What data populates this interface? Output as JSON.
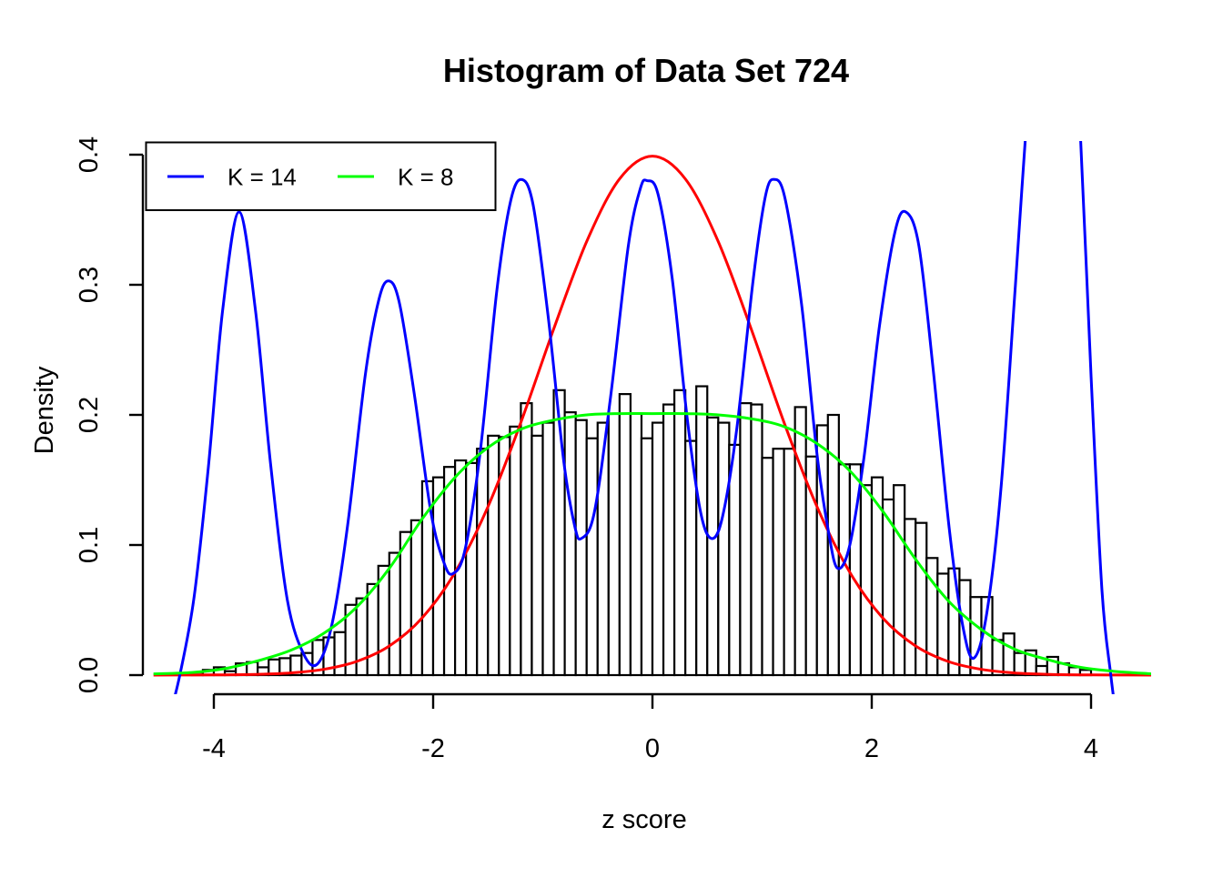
{
  "chart_data": {
    "type": "bar",
    "title": "Histogram of Data Set 724",
    "xlabel": "z score",
    "ylabel": "Density",
    "xlim": [
      -4.647,
      4.548
    ],
    "ylim": [
      -0.0147,
      0.4105
    ],
    "grid": "off",
    "x_ticks": [
      {
        "v": -4,
        "label": "-4"
      },
      {
        "v": -2,
        "label": "-2"
      },
      {
        "v": 0,
        "label": "0"
      },
      {
        "v": 2,
        "label": "2"
      },
      {
        "v": 4,
        "label": "4"
      }
    ],
    "y_ticks": [
      {
        "v": 0.0,
        "label": "0.0"
      },
      {
        "v": 0.1,
        "label": "0.1"
      },
      {
        "v": 0.2,
        "label": "0.2"
      },
      {
        "v": 0.3,
        "label": "0.3"
      },
      {
        "v": 0.4,
        "label": "0.4"
      }
    ],
    "histogram": {
      "bin_start": -4.2,
      "bin_width": 0.1,
      "bar_stroke": "#000000",
      "bar_fill": "#ffffff",
      "densities": [
        0.002,
        0.004,
        0.006,
        0.003,
        0.009,
        0.01,
        0.006,
        0.012,
        0.013,
        0.015,
        0.017,
        0.027,
        0.029,
        0.033,
        0.054,
        0.059,
        0.07,
        0.084,
        0.094,
        0.11,
        0.119,
        0.149,
        0.152,
        0.16,
        0.165,
        0.163,
        0.174,
        0.184,
        0.183,
        0.191,
        0.209,
        0.184,
        0.194,
        0.219,
        0.202,
        0.196,
        0.182,
        0.194,
        0.201,
        0.216,
        0.201,
        0.182,
        0.194,
        0.208,
        0.219,
        0.18,
        0.222,
        0.198,
        0.194,
        0.177,
        0.209,
        0.208,
        0.167,
        0.174,
        0.174,
        0.206,
        0.168,
        0.192,
        0.2,
        0.162,
        0.162,
        0.146,
        0.152,
        0.135,
        0.146,
        0.12,
        0.117,
        0.09,
        0.078,
        0.082,
        0.073,
        0.06,
        0.06,
        0.027,
        0.032,
        0.017,
        0.019,
        0.007,
        0.014,
        0.009,
        0.006,
        0.004
      ]
    },
    "series": [
      {
        "name": "normal-curve",
        "color": "#ff0000",
        "type": "line",
        "points": [
          [
            -4.55,
            0.0
          ],
          [
            -4.2,
            0.0001
          ],
          [
            -3.9,
            0.0002
          ],
          [
            -3.6,
            0.0006
          ],
          [
            -3.3,
            0.0017
          ],
          [
            -3.0,
            0.0044
          ],
          [
            -2.7,
            0.0104
          ],
          [
            -2.4,
            0.0224
          ],
          [
            -2.1,
            0.044
          ],
          [
            -1.8,
            0.079
          ],
          [
            -1.5,
            0.1295
          ],
          [
            -1.2,
            0.1942
          ],
          [
            -0.9,
            0.2661
          ],
          [
            -0.6,
            0.3332
          ],
          [
            -0.3,
            0.3814
          ],
          [
            0.0,
            0.3989
          ],
          [
            0.3,
            0.3814
          ],
          [
            0.6,
            0.3332
          ],
          [
            0.9,
            0.2661
          ],
          [
            1.2,
            0.1942
          ],
          [
            1.5,
            0.1295
          ],
          [
            1.8,
            0.079
          ],
          [
            2.1,
            0.044
          ],
          [
            2.4,
            0.0224
          ],
          [
            2.7,
            0.0104
          ],
          [
            3.0,
            0.0044
          ],
          [
            3.3,
            0.0017
          ],
          [
            3.6,
            0.0006
          ],
          [
            3.9,
            0.0002
          ],
          [
            4.2,
            0.0001
          ],
          [
            4.55,
            0.0
          ]
        ]
      },
      {
        "name": "K = 14",
        "color": "#0000ff",
        "type": "line",
        "points": [
          [
            -4.4,
            -0.03
          ],
          [
            -4.31,
            0.0
          ],
          [
            -4.18,
            0.06
          ],
          [
            -4.05,
            0.16
          ],
          [
            -3.92,
            0.28
          ],
          [
            -3.77,
            0.356
          ],
          [
            -3.62,
            0.28
          ],
          [
            -3.48,
            0.16
          ],
          [
            -3.33,
            0.058
          ],
          [
            -3.18,
            0.016
          ],
          [
            -3.05,
            0.009
          ],
          [
            -2.92,
            0.04
          ],
          [
            -2.78,
            0.115
          ],
          [
            -2.62,
            0.23
          ],
          [
            -2.5,
            0.287
          ],
          [
            -2.41,
            0.303
          ],
          [
            -2.31,
            0.287
          ],
          [
            -2.17,
            0.215
          ],
          [
            -2.02,
            0.125
          ],
          [
            -1.9,
            0.086
          ],
          [
            -1.82,
            0.078
          ],
          [
            -1.71,
            0.096
          ],
          [
            -1.57,
            0.172
          ],
          [
            -1.42,
            0.295
          ],
          [
            -1.3,
            0.362
          ],
          [
            -1.2,
            0.381
          ],
          [
            -1.09,
            0.362
          ],
          [
            -0.95,
            0.275
          ],
          [
            -0.81,
            0.165
          ],
          [
            -0.71,
            0.115
          ],
          [
            -0.65,
            0.105
          ],
          [
            -0.53,
            0.125
          ],
          [
            -0.38,
            0.215
          ],
          [
            -0.22,
            0.33
          ],
          [
            -0.11,
            0.374
          ],
          [
            -0.05,
            0.38
          ],
          [
            0.05,
            0.37
          ],
          [
            0.18,
            0.305
          ],
          [
            0.32,
            0.195
          ],
          [
            0.44,
            0.125
          ],
          [
            0.54,
            0.105
          ],
          [
            0.64,
            0.122
          ],
          [
            0.77,
            0.19
          ],
          [
            0.92,
            0.305
          ],
          [
            1.03,
            0.368
          ],
          [
            1.11,
            0.381
          ],
          [
            1.21,
            0.366
          ],
          [
            1.36,
            0.285
          ],
          [
            1.5,
            0.17
          ],
          [
            1.61,
            0.108
          ],
          [
            1.69,
            0.082
          ],
          [
            1.8,
            0.1
          ],
          [
            1.93,
            0.168
          ],
          [
            2.07,
            0.268
          ],
          [
            2.21,
            0.34
          ],
          [
            2.31,
            0.356
          ],
          [
            2.43,
            0.33
          ],
          [
            2.56,
            0.235
          ],
          [
            2.71,
            0.11
          ],
          [
            2.83,
            0.038
          ],
          [
            2.93,
            0.013
          ],
          [
            3.05,
            0.048
          ],
          [
            3.18,
            0.145
          ],
          [
            3.31,
            0.3
          ],
          [
            3.44,
            0.46
          ],
          [
            3.58,
            0.61
          ],
          [
            3.68,
            0.66
          ],
          [
            3.79,
            0.58
          ],
          [
            3.9,
            0.42
          ],
          [
            4.0,
            0.23
          ],
          [
            4.1,
            0.065
          ],
          [
            4.18,
            0.0
          ],
          [
            4.25,
            -0.045
          ]
        ]
      },
      {
        "name": "K = 8",
        "color": "#00ff00",
        "type": "line",
        "points": [
          [
            -4.55,
            0.001
          ],
          [
            -4.2,
            0.002
          ],
          [
            -3.9,
            0.005
          ],
          [
            -3.6,
            0.011
          ],
          [
            -3.3,
            0.019
          ],
          [
            -3.0,
            0.032
          ],
          [
            -2.7,
            0.052
          ],
          [
            -2.4,
            0.082
          ],
          [
            -2.1,
            0.12
          ],
          [
            -1.8,
            0.152
          ],
          [
            -1.5,
            0.175
          ],
          [
            -1.2,
            0.189
          ],
          [
            -0.9,
            0.196
          ],
          [
            -0.6,
            0.2
          ],
          [
            -0.3,
            0.201
          ],
          [
            0.0,
            0.201
          ],
          [
            0.3,
            0.201
          ],
          [
            0.6,
            0.2
          ],
          [
            0.9,
            0.197
          ],
          [
            1.2,
            0.191
          ],
          [
            1.5,
            0.178
          ],
          [
            1.8,
            0.157
          ],
          [
            2.1,
            0.126
          ],
          [
            2.4,
            0.089
          ],
          [
            2.7,
            0.057
          ],
          [
            3.0,
            0.035
          ],
          [
            3.3,
            0.02
          ],
          [
            3.6,
            0.012
          ],
          [
            3.9,
            0.006
          ],
          [
            4.2,
            0.003
          ],
          [
            4.55,
            0.001
          ]
        ]
      }
    ],
    "legend": {
      "position": "topleft",
      "entries": [
        {
          "label": "K = 14",
          "color": "#0000ff"
        },
        {
          "label": "K = 8",
          "color": "#00ff00"
        }
      ]
    }
  }
}
